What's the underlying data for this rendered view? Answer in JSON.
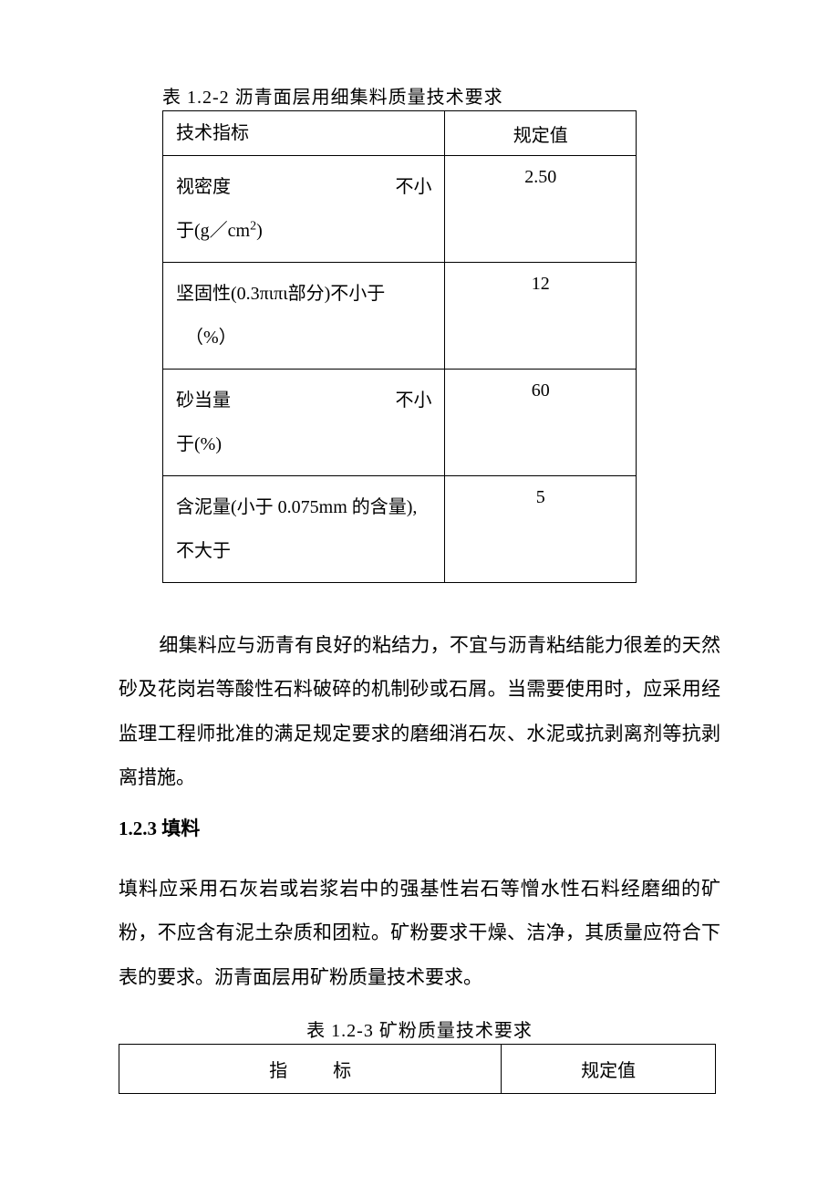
{
  "table1": {
    "caption": "表 1.2-2 沥青面层用细集料质量技术要求",
    "header_label": "技术指标",
    "header_value": "规定值",
    "rows": [
      {
        "label_line1_left": "视密度",
        "label_line1_right": "不小",
        "label_line2": "于(g／cm",
        "label_line2_sup": "2",
        "label_line2_end": ")",
        "value": "2.50"
      },
      {
        "label_line1": "坚固性(0.3πιπι部分)不小于",
        "label_line2": "（%）",
        "value": "12"
      },
      {
        "label_line1_left": "砂当量",
        "label_line1_right": "不小",
        "label_line2": "于(%)",
        "value": "60"
      },
      {
        "label_line1": "含泥量(小于 0.075mm 的含量),",
        "label_line2": "不大于",
        "value": "5"
      }
    ]
  },
  "paragraph1": "细集料应与沥青有良好的粘结力，不宜与沥青粘结能力很差的天然砂及花岗岩等酸性石料破碎的机制砂或石屑。当需要使用时，应采用经监理工程师批准的满足规定要求的磨细消石灰、水泥或抗剥离剂等抗剥离措施。",
  "heading": "1.2.3  填料",
  "paragraph2": "填料应采用石灰岩或岩浆岩中的强基性岩石等憎水性石料经磨细的矿粉，不应含有泥土杂质和团粒。矿粉要求干燥、洁净，其质量应符合下表的要求。沥青面层用矿粉质量技术要求。",
  "table2": {
    "caption": "表 1.2-3 矿粉质量技术要求",
    "header_label_char1": "指",
    "header_label_char2": "标",
    "header_value": "规定值"
  },
  "colors": {
    "text": "#000000",
    "background": "#ffffff",
    "border": "#000000"
  }
}
